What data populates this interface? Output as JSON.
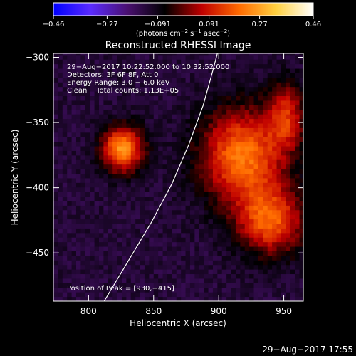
{
  "chart_data": {
    "type": "heatmap",
    "title": "Reconstructed RHESSI Image",
    "xlabel": "Heliocentric X (arcsec)",
    "ylabel": "Heliocentric Y (arcsec)",
    "xlim": [
      773,
      965
    ],
    "ylim": [
      -487,
      -297
    ],
    "x_ticks": [
      800,
      850,
      900,
      950
    ],
    "y_ticks": [
      -300,
      -350,
      -400,
      -450
    ],
    "x_tick_labels": [
      "800",
      "850",
      "900",
      "950"
    ],
    "y_tick_labels": [
      "−300",
      "−350",
      "−400",
      "−450"
    ],
    "colorbar": {
      "ticks": [
        -0.46,
        -0.27,
        -0.091,
        0.091,
        0.27,
        0.46
      ],
      "tick_labels": [
        "−0.46",
        "−0.27",
        "−0.091",
        "0.091",
        "0.27",
        "0.46"
      ],
      "range": [
        -0.46,
        0.46
      ],
      "units_prefix": "(photons cm",
      "units_exp1": "−2",
      "units_mid": " s",
      "units_exp2": "−1",
      "units_mid2": " asec",
      "units_exp3": "−2",
      "units_suffix": ")",
      "colormap": [
        "#0000ff",
        "#5a2bff",
        "#4a1070",
        "#000000",
        "#c00000",
        "#ff6a00",
        "#ffd040",
        "#ffffff"
      ]
    },
    "annotations": [
      "29−Aug−2017 10:22:52.000 to 10:32:52.000",
      "Detectors: 3F 6F 8F, Att 0",
      "Energy Range: 3.0 − 6.0 keV",
      "Clean    Total counts: 1.13E+05"
    ],
    "peak_label": "Position of Peak = [930,−415]",
    "limb_curve": [
      [
        812,
        -487
      ],
      [
        830,
        -457
      ],
      [
        848,
        -427
      ],
      [
        864,
        -397
      ],
      [
        877,
        -367
      ],
      [
        888,
        -337
      ],
      [
        895,
        -312
      ],
      [
        899,
        -297
      ]
    ],
    "sources": [
      {
        "x": 826,
        "y": -370,
        "sx": 11,
        "sy": 12,
        "amp": 0.38
      },
      {
        "x": 918,
        "y": -375,
        "sx": 22,
        "sy": 25,
        "amp": 0.34
      },
      {
        "x": 940,
        "y": -425,
        "sx": 18,
        "sy": 18,
        "amp": 0.3
      },
      {
        "x": 952,
        "y": -345,
        "sx": 10,
        "sy": 18,
        "amp": 0.22
      }
    ],
    "background_level": -0.13
  },
  "footer": {
    "timestamp": "29−Aug−2017 17:55"
  }
}
